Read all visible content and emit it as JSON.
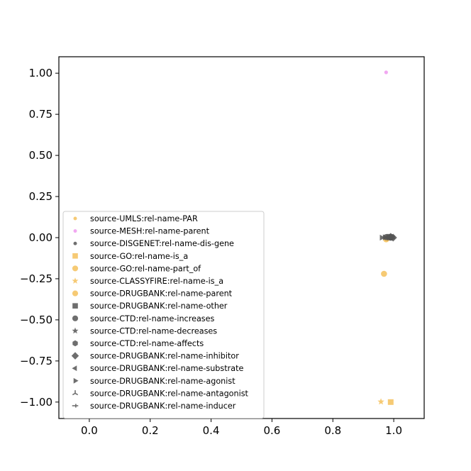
{
  "chart_data": {
    "type": "scatter",
    "title": "",
    "xlabel": "",
    "ylabel": "",
    "xlim": [
      -0.1,
      1.1
    ],
    "ylim": [
      -1.1,
      1.1
    ],
    "x_ticks": [
      0.0,
      0.2,
      0.4,
      0.6,
      0.8,
      1.0
    ],
    "y_ticks": [
      1.0,
      0.75,
      0.5,
      0.25,
      0.0,
      -0.25,
      -0.5,
      -0.75,
      -1.0
    ],
    "x_tick_labels": [
      "0.0",
      "0.2",
      "0.4",
      "0.6",
      "0.8",
      "1.0"
    ],
    "y_tick_labels": [
      "1.00",
      "0.75",
      "0.50",
      "0.25",
      "0.00",
      "−0.25",
      "−0.50",
      "−0.75",
      "−1.00"
    ],
    "grid": false,
    "legend_position": "lower-left",
    "series": [
      {
        "name": "source-UMLS:rel-name-PAR",
        "marker": "point",
        "color": "#f5c15c",
        "points": [
          [
            0.975,
            0.0
          ],
          [
            0.985,
            0.002
          ]
        ]
      },
      {
        "name": "source-MESH:rel-name-parent",
        "marker": "point",
        "color": "#ee99ee",
        "points": [
          [
            0.975,
            1.005
          ]
        ]
      },
      {
        "name": "source-DISGENET:rel-name-dis-gene",
        "marker": "point",
        "color": "#555555",
        "points": [
          [
            0.98,
            0.0
          ],
          [
            0.99,
            0.0
          ]
        ]
      },
      {
        "name": "source-GO:rel-name-is_a",
        "marker": "square",
        "color": "#f5c15c",
        "points": [
          [
            0.99,
            -1.0
          ]
        ]
      },
      {
        "name": "source-GO:rel-name-part_of",
        "marker": "circle",
        "color": "#f5c15c",
        "points": [
          [
            0.968,
            -0.22
          ],
          [
            0.975,
            -0.01
          ]
        ]
      },
      {
        "name": "source-CLASSYFIRE:rel-name-is_a",
        "marker": "star",
        "color": "#f5c15c",
        "points": [
          [
            0.958,
            -0.998
          ]
        ]
      },
      {
        "name": "source-DRUGBANK:rel-name-parent",
        "marker": "circle",
        "color": "#f5c15c",
        "points": [
          [
            0.978,
            -0.005
          ]
        ]
      },
      {
        "name": "source-DRUGBANK:rel-name-other",
        "marker": "square",
        "color": "#555555",
        "points": [
          [
            0.985,
            0.005
          ]
        ]
      },
      {
        "name": "source-CTD:rel-name-increases",
        "marker": "circle",
        "color": "#555555",
        "points": [
          [
            0.975,
            0.003
          ],
          [
            0.99,
            0.0
          ]
        ]
      },
      {
        "name": "source-CTD:rel-name-decreases",
        "marker": "star",
        "color": "#555555",
        "points": [
          [
            0.985,
            -0.002
          ]
        ]
      },
      {
        "name": "source-CTD:rel-name-affects",
        "marker": "hexagon",
        "color": "#555555",
        "points": [
          [
            0.995,
            0.002
          ]
        ]
      },
      {
        "name": "source-DRUGBANK:rel-name-inhibitor",
        "marker": "diamond",
        "color": "#555555",
        "points": [
          [
            0.99,
            0.005
          ],
          [
            0.998,
            0.0
          ]
        ]
      },
      {
        "name": "source-DRUGBANK:rel-name-substrate",
        "marker": "triangle-left",
        "color": "#555555",
        "points": [
          [
            0.98,
            0.0
          ]
        ]
      },
      {
        "name": "source-DRUGBANK:rel-name-agonist",
        "marker": "triangle-right",
        "color": "#555555",
        "points": [
          [
            0.96,
            0.0
          ],
          [
            0.97,
            0.002
          ]
        ]
      },
      {
        "name": "source-DRUGBANK:rel-name-antagonist",
        "marker": "tri-down",
        "color": "#555555",
        "points": [
          [
            0.985,
            0.0
          ]
        ]
      },
      {
        "name": "source-DRUGBANK:rel-name-inducer",
        "marker": "tick-right",
        "color": "#555555",
        "points": [
          [
            0.99,
            0.003
          ]
        ]
      }
    ]
  }
}
